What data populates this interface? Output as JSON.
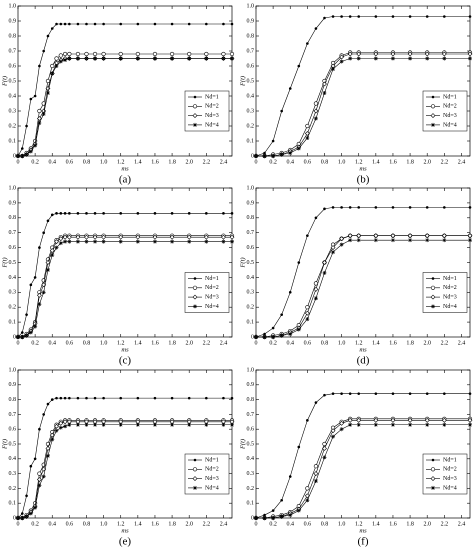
{
  "chart_data": [
    {
      "type": "line",
      "label": "(a)",
      "xlabel": "ms",
      "ylabel": "F(t)",
      "legend": "right",
      "xlim": [
        0,
        2.5
      ],
      "ylim": [
        0,
        1
      ],
      "xticks": [
        0,
        0.2,
        0.4,
        0.6,
        0.8,
        {
          "value": 1,
          "label": "1.0"
        },
        1.2,
        1.4,
        1.6,
        1.8,
        {
          "value": 2,
          "label": "2.0"
        },
        2.2,
        2.4
      ],
      "yticks": [
        0,
        0.1,
        0.2,
        0.3,
        0.4,
        0.5,
        0.6,
        0.7,
        0.8,
        0.9,
        {
          "value": 1,
          "label": "1.0"
        }
      ],
      "x": [
        0,
        0.05,
        0.1,
        0.15,
        0.2,
        0.25,
        0.3,
        0.35,
        0.4,
        0.45,
        0.5,
        0.55,
        0.6,
        0.7,
        0.8,
        0.9,
        1.0,
        1.2,
        1.4,
        1.6,
        1.8,
        2.0,
        2.2,
        2.4,
        2.5
      ],
      "series": [
        {
          "name": "Nd=1",
          "color": "#000000",
          "marker": "dot",
          "values": [
            0,
            0.05,
            0.2,
            0.38,
            0.4,
            0.6,
            0.7,
            0.8,
            0.85,
            0.88,
            0.88,
            0.88,
            0.88,
            0.88,
            0.88,
            0.88,
            0.88,
            0.88,
            0.88,
            0.88,
            0.88,
            0.88,
            0.88,
            0.88,
            0.88
          ]
        },
        {
          "name": "Nd=2",
          "color": "#000000",
          "marker": "circle",
          "values": [
            0,
            0,
            0.02,
            0.05,
            0.1,
            0.3,
            0.35,
            0.5,
            0.6,
            0.65,
            0.67,
            0.68,
            0.68,
            0.68,
            0.68,
            0.68,
            0.68,
            0.68,
            0.68,
            0.68,
            0.68,
            0.68,
            0.68,
            0.68,
            0.68
          ]
        },
        {
          "name": "Nd=3",
          "color": "#000000",
          "marker": "diamond",
          "values": [
            0,
            0,
            0.01,
            0.04,
            0.08,
            0.25,
            0.3,
            0.45,
            0.55,
            0.62,
            0.64,
            0.65,
            0.65,
            0.65,
            0.65,
            0.65,
            0.65,
            0.65,
            0.65,
            0.65,
            0.65,
            0.65,
            0.65,
            0.65,
            0.65
          ]
        },
        {
          "name": "Nd=4",
          "color": "#000000",
          "marker": "star",
          "values": [
            0,
            0,
            0.01,
            0.03,
            0.07,
            0.22,
            0.28,
            0.42,
            0.55,
            0.6,
            0.63,
            0.64,
            0.65,
            0.65,
            0.65,
            0.65,
            0.65,
            0.65,
            0.65,
            0.65,
            0.65,
            0.65,
            0.65,
            0.65,
            0.65
          ]
        }
      ]
    },
    {
      "type": "line",
      "label": "(b)",
      "xlabel": "ms",
      "ylabel": "F(t)",
      "legend": "right",
      "xlim": [
        0,
        2.5
      ],
      "ylim": [
        0,
        1
      ],
      "xticks": [
        0,
        0.2,
        0.4,
        0.6,
        0.8,
        {
          "value": 1,
          "label": "1.0"
        },
        1.2,
        1.4,
        1.6,
        1.8,
        {
          "value": 2,
          "label": "2.0"
        },
        2.2,
        2.4
      ],
      "yticks": [
        0,
        0.1,
        0.2,
        0.3,
        0.4,
        0.5,
        0.6,
        0.7,
        0.8,
        0.9,
        {
          "value": 1,
          "label": "1.0"
        }
      ],
      "x": [
        0,
        0.1,
        0.2,
        0.3,
        0.4,
        0.5,
        0.6,
        0.7,
        0.8,
        0.9,
        1.0,
        1.1,
        1.2,
        1.4,
        1.6,
        1.8,
        2.0,
        2.2,
        2.5
      ],
      "series": [
        {
          "name": "Nd=1",
          "color": "#000000",
          "marker": "dot",
          "values": [
            0,
            0.02,
            0.1,
            0.3,
            0.45,
            0.6,
            0.75,
            0.85,
            0.92,
            0.93,
            0.93,
            0.93,
            0.93,
            0.93,
            0.93,
            0.93,
            0.93,
            0.93,
            0.93
          ]
        },
        {
          "name": "Nd=2",
          "color": "#000000",
          "marker": "circle",
          "values": [
            0,
            0,
            0.01,
            0.02,
            0.04,
            0.08,
            0.2,
            0.35,
            0.5,
            0.62,
            0.67,
            0.69,
            0.69,
            0.69,
            0.69,
            0.69,
            0.69,
            0.69,
            0.69
          ]
        },
        {
          "name": "Nd=3",
          "color": "#000000",
          "marker": "diamond",
          "values": [
            0,
            0,
            0,
            0.01,
            0.03,
            0.06,
            0.15,
            0.3,
            0.48,
            0.6,
            0.66,
            0.68,
            0.68,
            0.68,
            0.68,
            0.68,
            0.68,
            0.68,
            0.68
          ]
        },
        {
          "name": "Nd=4",
          "color": "#000000",
          "marker": "star",
          "values": [
            0,
            0,
            0,
            0.01,
            0.02,
            0.05,
            0.12,
            0.25,
            0.42,
            0.58,
            0.63,
            0.65,
            0.65,
            0.65,
            0.65,
            0.65,
            0.65,
            0.65,
            0.65
          ]
        }
      ]
    },
    {
      "type": "line",
      "label": "(c)",
      "xlabel": "ms",
      "ylabel": "F(t)",
      "legend": "right",
      "xlim": [
        0,
        2.5
      ],
      "ylim": [
        0,
        1
      ],
      "xticks": [
        0,
        0.2,
        0.4,
        0.6,
        0.8,
        {
          "value": 1,
          "label": "1.0"
        },
        1.2,
        1.4,
        1.6,
        1.8,
        {
          "value": 2,
          "label": "2.0"
        },
        2.2,
        2.4
      ],
      "yticks": [
        0,
        0.1,
        0.2,
        0.3,
        0.4,
        0.5,
        0.6,
        0.7,
        0.8,
        0.9,
        {
          "value": 1,
          "label": "1.0"
        }
      ],
      "x": [
        0,
        0.05,
        0.1,
        0.15,
        0.2,
        0.25,
        0.3,
        0.35,
        0.4,
        0.45,
        0.5,
        0.55,
        0.6,
        0.7,
        0.8,
        0.9,
        1.0,
        1.2,
        1.4,
        1.6,
        1.8,
        2.0,
        2.2,
        2.4,
        2.5
      ],
      "series": [
        {
          "name": "Nd=1",
          "color": "#000000",
          "marker": "dot",
          "values": [
            0,
            0.03,
            0.15,
            0.35,
            0.4,
            0.6,
            0.7,
            0.78,
            0.82,
            0.83,
            0.83,
            0.83,
            0.83,
            0.83,
            0.83,
            0.83,
            0.83,
            0.83,
            0.83,
            0.83,
            0.83,
            0.83,
            0.83,
            0.83,
            0.83
          ]
        },
        {
          "name": "Nd=2",
          "color": "#000000",
          "marker": "circle",
          "values": [
            0,
            0,
            0.02,
            0.05,
            0.1,
            0.3,
            0.38,
            0.52,
            0.6,
            0.65,
            0.67,
            0.68,
            0.68,
            0.68,
            0.68,
            0.68,
            0.68,
            0.68,
            0.68,
            0.68,
            0.68,
            0.68,
            0.68,
            0.68,
            0.68
          ]
        },
        {
          "name": "Nd=3",
          "color": "#000000",
          "marker": "diamond",
          "values": [
            0,
            0,
            0.01,
            0.04,
            0.09,
            0.28,
            0.35,
            0.5,
            0.58,
            0.64,
            0.66,
            0.67,
            0.67,
            0.67,
            0.67,
            0.67,
            0.67,
            0.67,
            0.67,
            0.67,
            0.67,
            0.67,
            0.67,
            0.67,
            0.67
          ]
        },
        {
          "name": "Nd=4",
          "color": "#000000",
          "marker": "star",
          "values": [
            0,
            0,
            0.01,
            0.03,
            0.07,
            0.22,
            0.3,
            0.45,
            0.55,
            0.6,
            0.63,
            0.64,
            0.64,
            0.64,
            0.64,
            0.64,
            0.64,
            0.64,
            0.64,
            0.64,
            0.64,
            0.64,
            0.64,
            0.64,
            0.64
          ]
        }
      ]
    },
    {
      "type": "line",
      "label": "(d)",
      "xlabel": "ms",
      "ylabel": "F(t)",
      "legend": "right",
      "xlim": [
        0,
        2.5
      ],
      "ylim": [
        0,
        1
      ],
      "xticks": [
        0,
        0.2,
        0.4,
        0.6,
        0.8,
        {
          "value": 1,
          "label": "1.0"
        },
        1.2,
        1.4,
        1.6,
        1.8,
        {
          "value": 2,
          "label": "2.0"
        },
        2.2,
        2.4
      ],
      "yticks": [
        0,
        0.1,
        0.2,
        0.3,
        0.4,
        0.5,
        0.6,
        0.7,
        0.8,
        0.9,
        {
          "value": 1,
          "label": "1.0"
        }
      ],
      "x": [
        0,
        0.1,
        0.2,
        0.3,
        0.4,
        0.5,
        0.6,
        0.7,
        0.8,
        0.9,
        1.0,
        1.1,
        1.2,
        1.4,
        1.6,
        1.8,
        2.0,
        2.2,
        2.5
      ],
      "series": [
        {
          "name": "Nd=1",
          "color": "#000000",
          "marker": "dot",
          "values": [
            0,
            0.02,
            0.06,
            0.15,
            0.3,
            0.5,
            0.68,
            0.8,
            0.86,
            0.87,
            0.87,
            0.87,
            0.87,
            0.87,
            0.87,
            0.87,
            0.87,
            0.87,
            0.87
          ]
        },
        {
          "name": "Nd=2",
          "color": "#000000",
          "marker": "circle",
          "values": [
            0,
            0,
            0.01,
            0.02,
            0.04,
            0.08,
            0.2,
            0.36,
            0.5,
            0.62,
            0.66,
            0.68,
            0.68,
            0.68,
            0.68,
            0.68,
            0.68,
            0.68,
            0.68
          ]
        },
        {
          "name": "Nd=3",
          "color": "#000000",
          "marker": "diamond",
          "values": [
            0,
            0,
            0,
            0.01,
            0.03,
            0.06,
            0.16,
            0.32,
            0.5,
            0.6,
            0.66,
            0.68,
            0.68,
            0.68,
            0.68,
            0.68,
            0.68,
            0.68,
            0.68
          ]
        },
        {
          "name": "Nd=4",
          "color": "#000000",
          "marker": "star",
          "values": [
            0,
            0,
            0,
            0.01,
            0.02,
            0.05,
            0.12,
            0.26,
            0.43,
            0.57,
            0.62,
            0.65,
            0.65,
            0.65,
            0.65,
            0.65,
            0.65,
            0.65,
            0.65
          ]
        }
      ]
    },
    {
      "type": "line",
      "label": "(e)",
      "xlabel": "ms",
      "ylabel": "F(t)",
      "legend": "right",
      "xlim": [
        0,
        2.5
      ],
      "ylim": [
        0,
        1
      ],
      "xticks": [
        0,
        0.2,
        0.4,
        0.6,
        0.8,
        {
          "value": 1,
          "label": "1.0"
        },
        1.2,
        1.4,
        1.6,
        1.8,
        {
          "value": 2,
          "label": "2.0"
        },
        2.2,
        2.4
      ],
      "yticks": [
        0,
        0.1,
        0.2,
        0.3,
        0.4,
        0.5,
        0.6,
        0.7,
        0.8,
        0.9,
        {
          "value": 1,
          "label": "1.0"
        }
      ],
      "x": [
        0,
        0.05,
        0.1,
        0.15,
        0.2,
        0.25,
        0.3,
        0.35,
        0.4,
        0.45,
        0.5,
        0.55,
        0.6,
        0.7,
        0.8,
        0.9,
        1.0,
        1.2,
        1.4,
        1.6,
        1.8,
        2.0,
        2.2,
        2.4,
        2.5
      ],
      "series": [
        {
          "name": "Nd=1",
          "color": "#000000",
          "marker": "dot",
          "values": [
            0,
            0.03,
            0.15,
            0.35,
            0.4,
            0.6,
            0.7,
            0.77,
            0.8,
            0.81,
            0.81,
            0.81,
            0.81,
            0.81,
            0.81,
            0.81,
            0.81,
            0.81,
            0.81,
            0.81,
            0.81,
            0.81,
            0.81,
            0.81,
            0.81
          ]
        },
        {
          "name": "Nd=2",
          "color": "#000000",
          "marker": "circle",
          "values": [
            0,
            0,
            0.02,
            0.05,
            0.1,
            0.3,
            0.36,
            0.5,
            0.58,
            0.63,
            0.65,
            0.66,
            0.66,
            0.66,
            0.66,
            0.66,
            0.66,
            0.66,
            0.66,
            0.66,
            0.66,
            0.66,
            0.66,
            0.66,
            0.66
          ]
        },
        {
          "name": "Nd=3",
          "color": "#000000",
          "marker": "diamond",
          "values": [
            0,
            0,
            0.01,
            0.04,
            0.08,
            0.26,
            0.33,
            0.47,
            0.56,
            0.62,
            0.64,
            0.65,
            0.65,
            0.65,
            0.65,
            0.65,
            0.65,
            0.65,
            0.65,
            0.65,
            0.65,
            0.65,
            0.65,
            0.65,
            0.65
          ]
        },
        {
          "name": "Nd=4",
          "color": "#000000",
          "marker": "star",
          "values": [
            0,
            0,
            0.01,
            0.03,
            0.07,
            0.22,
            0.28,
            0.42,
            0.53,
            0.59,
            0.61,
            0.62,
            0.63,
            0.63,
            0.63,
            0.63,
            0.63,
            0.63,
            0.63,
            0.63,
            0.63,
            0.63,
            0.63,
            0.63,
            0.63
          ]
        }
      ]
    },
    {
      "type": "line",
      "label": "(f)",
      "xlabel": "ms",
      "ylabel": "F(t)",
      "legend": "right",
      "xlim": [
        0,
        2.5
      ],
      "ylim": [
        0,
        1
      ],
      "xticks": [
        0,
        0.2,
        0.4,
        0.6,
        0.8,
        {
          "value": 1,
          "label": "1.0"
        },
        1.2,
        1.4,
        1.6,
        1.8,
        {
          "value": 2,
          "label": "2.0"
        },
        2.2,
        2.4
      ],
      "yticks": [
        0,
        0.1,
        0.2,
        0.3,
        0.4,
        0.5,
        0.6,
        0.7,
        0.8,
        0.9,
        {
          "value": 1,
          "label": "1.0"
        }
      ],
      "x": [
        0,
        0.1,
        0.2,
        0.3,
        0.4,
        0.5,
        0.6,
        0.7,
        0.8,
        0.9,
        1.0,
        1.1,
        1.2,
        1.4,
        1.6,
        1.8,
        2.0,
        2.2,
        2.5
      ],
      "series": [
        {
          "name": "Nd=1",
          "color": "#000000",
          "marker": "dot",
          "values": [
            0,
            0.02,
            0.05,
            0.12,
            0.28,
            0.48,
            0.66,
            0.78,
            0.83,
            0.84,
            0.84,
            0.84,
            0.84,
            0.84,
            0.84,
            0.84,
            0.84,
            0.84,
            0.84
          ]
        },
        {
          "name": "Nd=2",
          "color": "#000000",
          "marker": "circle",
          "values": [
            0,
            0,
            0.01,
            0.02,
            0.04,
            0.08,
            0.2,
            0.35,
            0.5,
            0.61,
            0.65,
            0.67,
            0.67,
            0.67,
            0.67,
            0.67,
            0.67,
            0.67,
            0.67
          ]
        },
        {
          "name": "Nd=3",
          "color": "#000000",
          "marker": "diamond",
          "values": [
            0,
            0,
            0,
            0.01,
            0.03,
            0.06,
            0.15,
            0.3,
            0.47,
            0.59,
            0.64,
            0.66,
            0.66,
            0.66,
            0.66,
            0.66,
            0.66,
            0.66,
            0.66
          ]
        },
        {
          "name": "Nd=4",
          "color": "#000000",
          "marker": "star",
          "values": [
            0,
            0,
            0,
            0.01,
            0.02,
            0.05,
            0.12,
            0.25,
            0.41,
            0.55,
            0.6,
            0.63,
            0.63,
            0.63,
            0.63,
            0.63,
            0.63,
            0.63,
            0.63
          ]
        }
      ]
    }
  ]
}
